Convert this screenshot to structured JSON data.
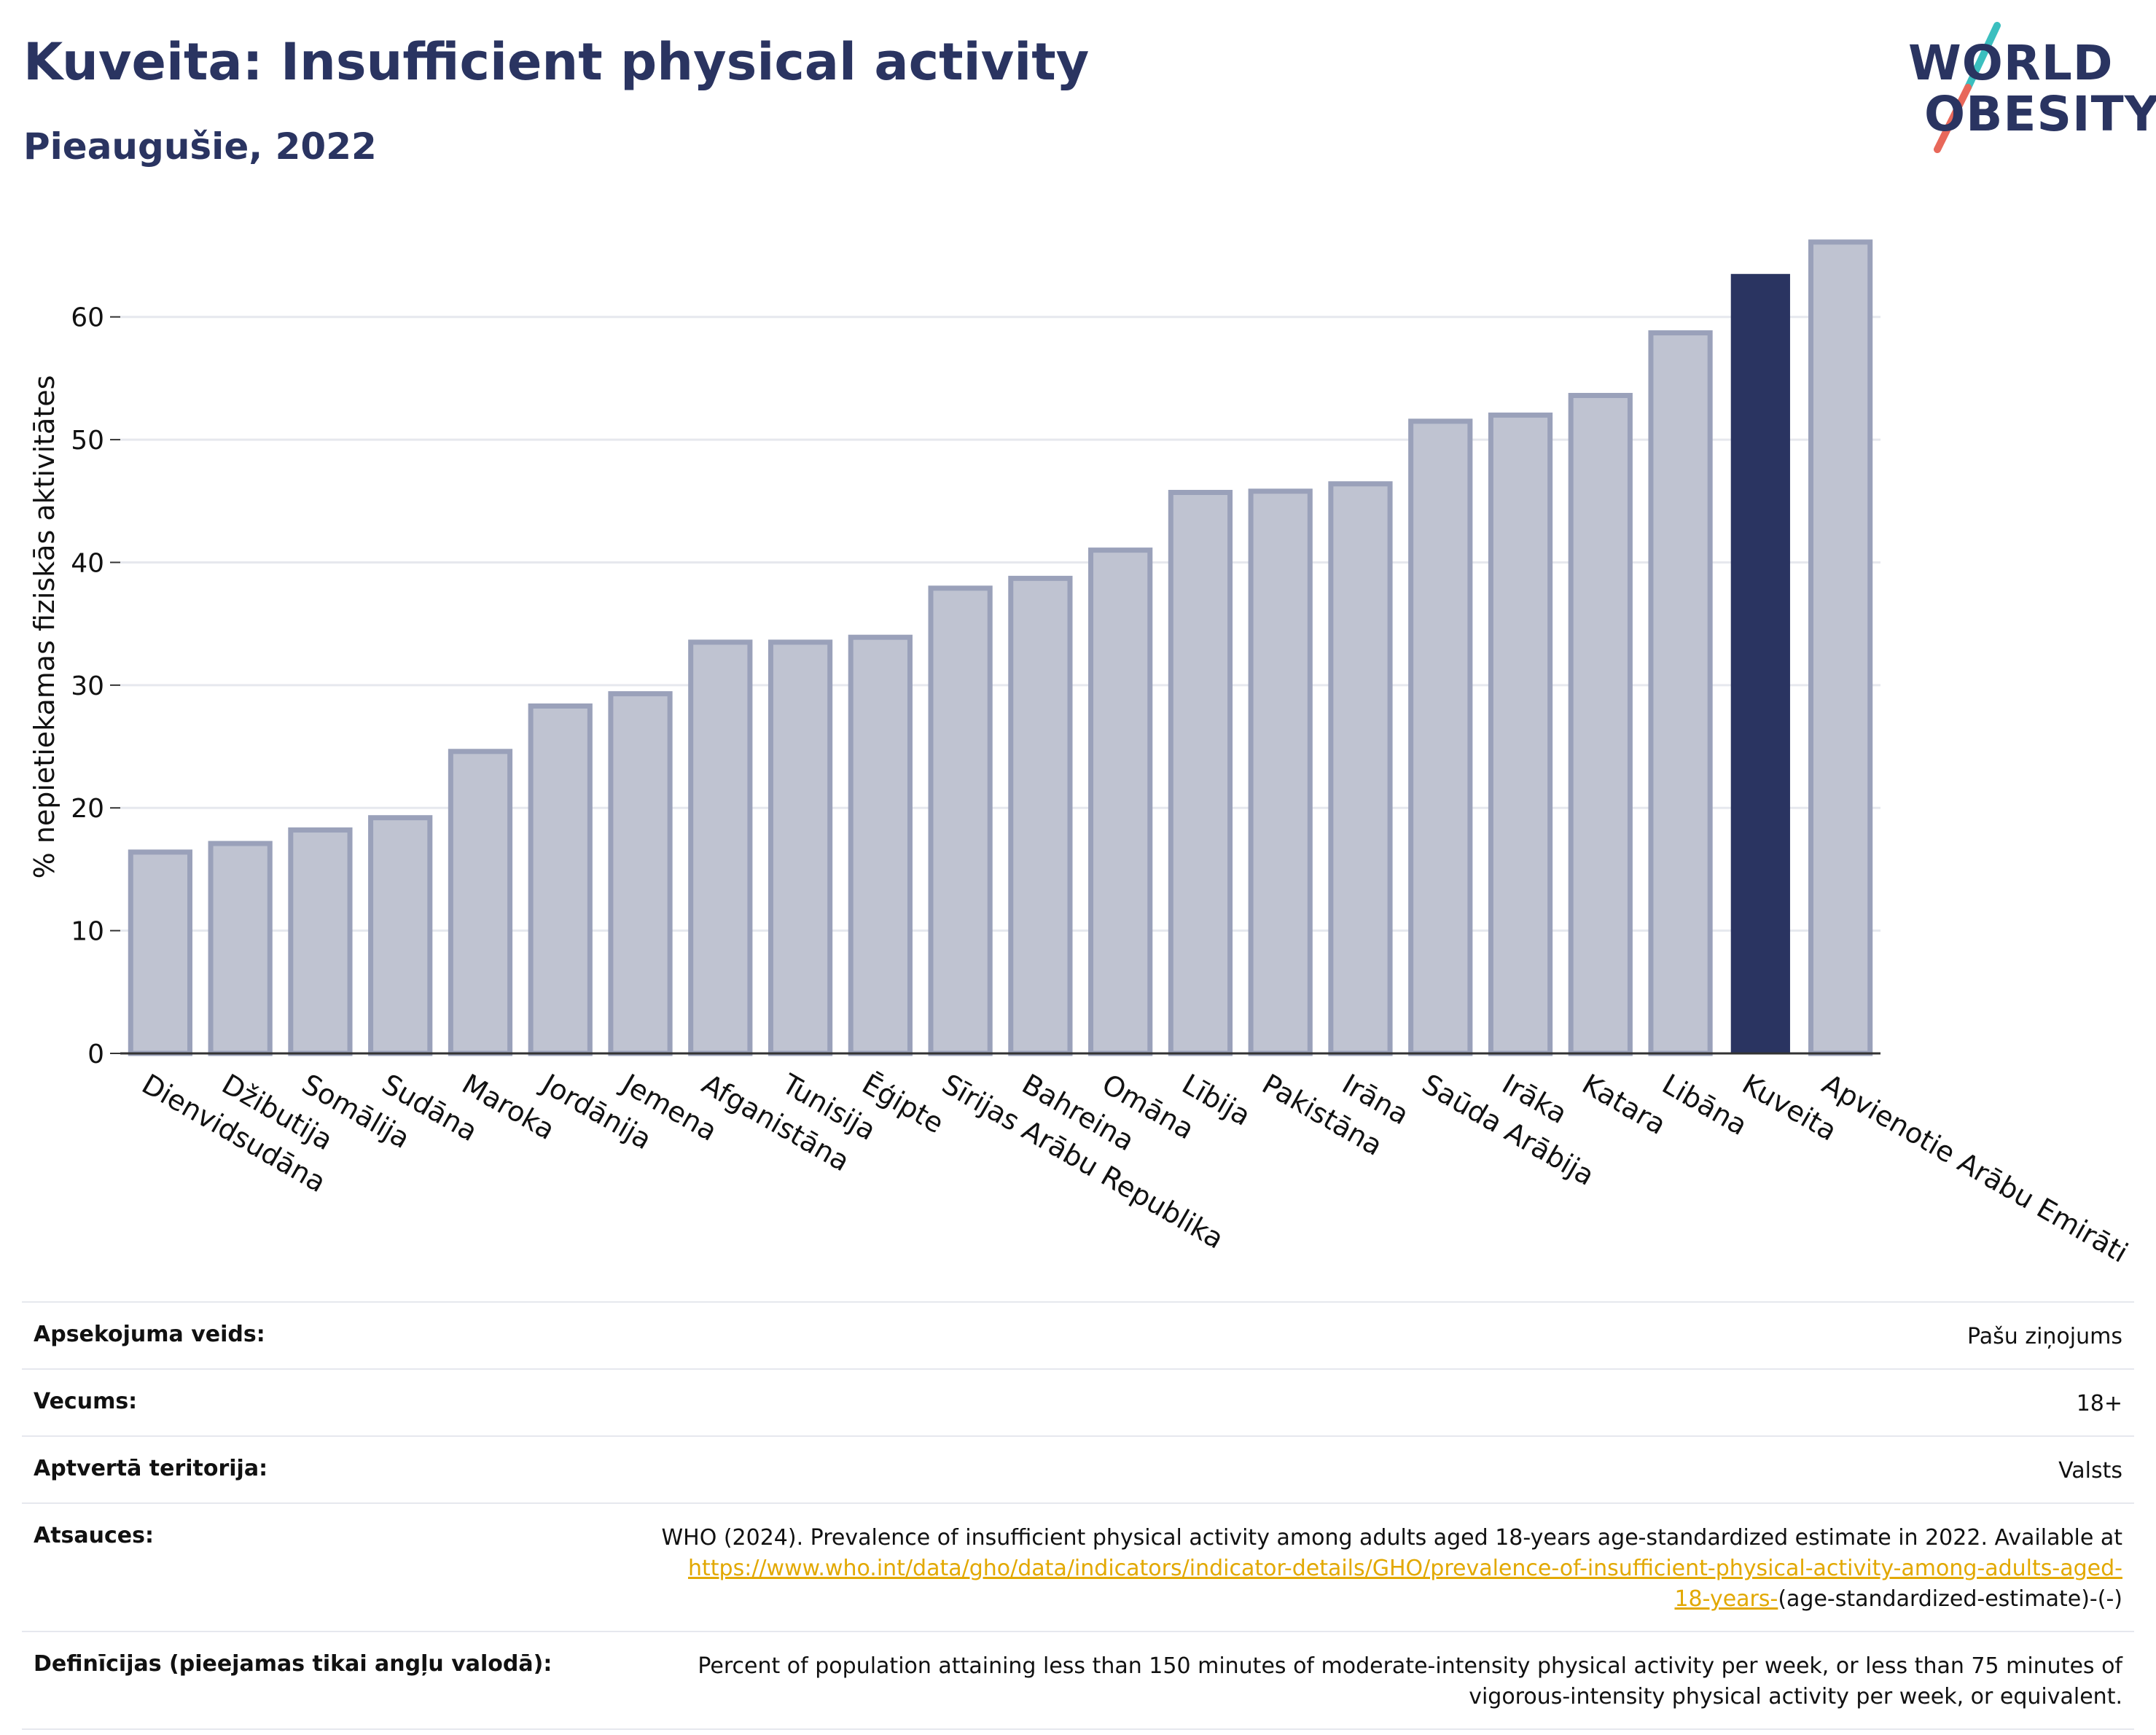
{
  "header": {
    "title": "Kuveita: Insufficient physical activity",
    "subtitle": "Pieaugušie, 2022"
  },
  "logo": {
    "line1": "WORLD",
    "line2": "OBESITY",
    "colors": {
      "text": "#2a3461",
      "slash_top": "#3bbfbf",
      "slash_bottom": "#e8685a"
    }
  },
  "chart_data": {
    "type": "bar",
    "ylabel": "% nepietiekamas fiziskās aktivitātes",
    "xlabel": "",
    "ylim": [
      0,
      68
    ],
    "yticks": [
      0,
      10,
      20,
      30,
      40,
      50,
      60
    ],
    "grid": true,
    "highlight": "Kuveita",
    "colors": {
      "bar": "#bfc3d1",
      "bar_edge": "#9aa1ba",
      "highlight": "#2a3461"
    },
    "categories": [
      "Dienvidsudāna",
      "Džibutija",
      "Somālija",
      "Sudāna",
      "Maroka",
      "Jordānija",
      "Jemena",
      "Afganistāna",
      "Tunisija",
      "Ēģipte",
      "Sīrijas Arābu Republika",
      "Bahreina",
      "Omāna",
      "Lībija",
      "Pakistāna",
      "Irāna",
      "Saūda Arābija",
      "Irāka",
      "Katara",
      "Libāna",
      "Kuveita",
      "Apvienotie Arābu Emirāti"
    ],
    "values": [
      16.4,
      17.1,
      18.2,
      19.2,
      24.6,
      28.3,
      29.3,
      33.5,
      33.5,
      33.9,
      37.9,
      38.7,
      41.0,
      45.7,
      45.8,
      46.4,
      51.5,
      52.0,
      53.6,
      58.7,
      63.5,
      66.1
    ]
  },
  "meta": {
    "rows": [
      {
        "label": "Apsekojuma veids:",
        "value": "Pašu ziņojums"
      },
      {
        "label": "Vecums:",
        "value": "18+"
      },
      {
        "label": "Aptvertā teritorija:",
        "value": "Valsts"
      }
    ],
    "references": {
      "label": "Atsauces:",
      "text": "WHO (2024). Prevalence of insufficient physical activity among adults aged 18-years age-standardized estimate in 2022. Available at",
      "link_line1": "https://www.who.int/data/gho/data/indicators/indicator-details/GHO/prevalence-of-insufficient-physical-activity-among-adults-aged-",
      "link_line2": "18-years-",
      "suffix": "(age-standardized-estimate)-(-)"
    },
    "definitions": {
      "label": "Definīcijas (pieejamas tikai angļu valodā):",
      "line1": "Percent of population attaining less than 150 minutes of moderate-intensity physical activity per week, or less than 75 minutes of",
      "line2": "vigorous-intensity physical activity per week, or equivalent."
    }
  }
}
